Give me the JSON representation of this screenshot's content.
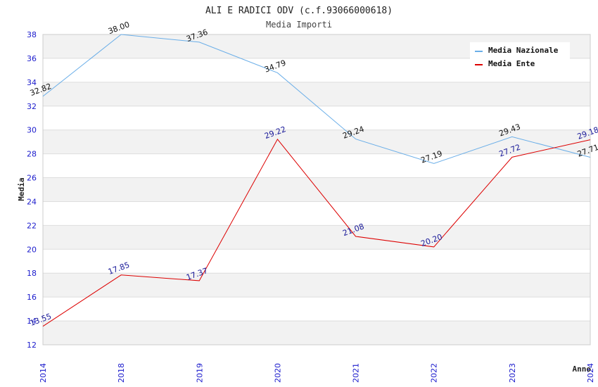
{
  "chart_data": {
    "type": "line",
    "title": "ALI E RADICI ODV (c.f.93066000618)",
    "subtitle": "Media Importi",
    "xlabel": "Anno",
    "ylabel": "Media",
    "categories": [
      "2014",
      "2018",
      "2019",
      "2020",
      "2021",
      "2022",
      "2023",
      "2024"
    ],
    "ylim": [
      12,
      38
    ],
    "yticks": [
      12,
      14,
      16,
      18,
      20,
      22,
      24,
      26,
      28,
      30,
      32,
      34,
      36,
      38
    ],
    "grid": true,
    "legend_position": "top-right",
    "series": [
      {
        "name": "Media Nazionale",
        "color": "#6aaee8",
        "label_color": "#111111",
        "values": [
          32.82,
          38.0,
          37.36,
          34.79,
          29.24,
          27.19,
          29.43,
          27.71
        ],
        "labels": [
          "32.82",
          "38.00",
          "37.36",
          "34.79",
          "29.24",
          "27.19",
          "29.43",
          "27.71"
        ]
      },
      {
        "name": "Media Ente",
        "color": "#dd0000",
        "label_color": "#1a1a99",
        "values": [
          13.55,
          17.85,
          17.37,
          29.22,
          21.08,
          20.2,
          27.72,
          29.18
        ],
        "labels": [
          "13.55",
          "17.85",
          "17.37",
          "29.22",
          "21.08",
          "20.20",
          "27.72",
          "29.18"
        ]
      }
    ]
  }
}
